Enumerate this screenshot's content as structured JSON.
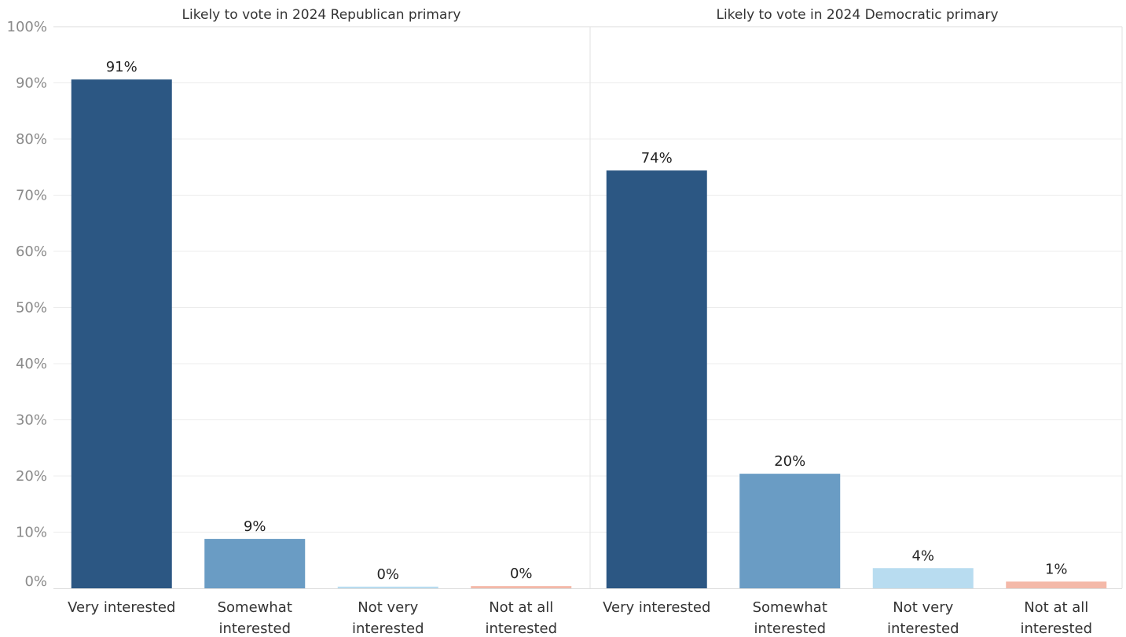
{
  "chart_data": {
    "type": "bar",
    "ylim": [
      0,
      100
    ],
    "y_ticks": [
      "0%",
      "10%",
      "20%",
      "30%",
      "40%",
      "50%",
      "60%",
      "70%",
      "80%",
      "90%",
      "100%"
    ],
    "grid": true,
    "categories": [
      [
        "Very interested"
      ],
      [
        "Somewhat",
        "interested"
      ],
      [
        "Not very",
        "interested"
      ],
      [
        "Not at all",
        "interested"
      ]
    ],
    "category_colors": [
      "#2c5783",
      "#6a9cc4",
      "#b8dcf0",
      "#f4b9a9"
    ],
    "panels": [
      {
        "title": "Likely to vote in 2024 Republican primary",
        "values": [
          90.6,
          8.8,
          0.3,
          0.4
        ],
        "labels": [
          "91%",
          "9%",
          "0%",
          "0%"
        ]
      },
      {
        "title": "Likely to vote in 2024 Democratic primary",
        "values": [
          74.4,
          20.4,
          3.6,
          1.2
        ],
        "labels": [
          "74%",
          "20%",
          "4%",
          "1%"
        ]
      }
    ]
  }
}
